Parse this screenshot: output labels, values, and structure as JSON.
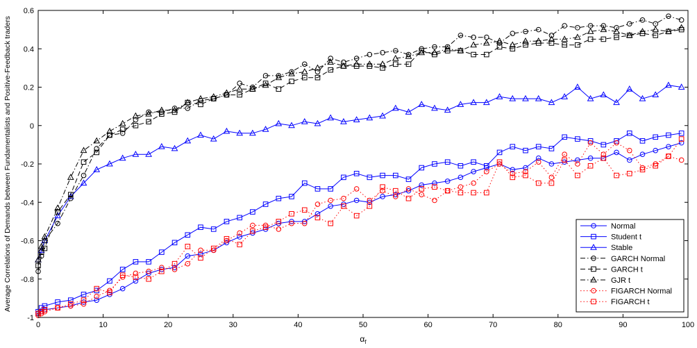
{
  "chart_data": {
    "type": "line",
    "title": "",
    "xlabel": "α",
    "xlabel_sub": "f",
    "ylabel": "Average Correlations of Demands between Fundamentalists and Positive-Feedback traders",
    "xlim": [
      0,
      100
    ],
    "ylim": [
      -1,
      0.6
    ],
    "xticks": [
      0,
      10,
      20,
      30,
      40,
      50,
      60,
      70,
      80,
      90,
      100
    ],
    "yticks": [
      -1,
      -0.8,
      -0.6,
      -0.4,
      -0.2,
      0,
      0.2,
      0.4,
      0.6
    ],
    "xtick_labels": [
      "0",
      "10",
      "20",
      "30",
      "40",
      "50",
      "60",
      "70",
      "80",
      "90",
      "100"
    ],
    "ytick_labels": [
      "-1",
      "-0.8",
      "-0.6",
      "-0.4",
      "-0.2",
      "0",
      "0.2",
      "0.4",
      "0.6"
    ],
    "grid": false,
    "legend_position": "bottom-right",
    "series": [
      {
        "name": "Normal",
        "color": "#0000ff",
        "dash": "solid",
        "marker": "circle",
        "x": [
          0,
          0.5,
          1,
          3,
          5,
          7,
          9,
          11,
          13,
          15,
          17,
          19,
          21,
          23,
          25,
          27,
          29,
          31,
          33,
          35,
          37,
          39,
          41,
          43,
          45,
          47,
          49,
          51,
          53,
          55,
          57,
          59,
          61,
          63,
          65,
          67,
          69,
          71,
          73,
          75,
          77,
          79,
          81,
          83,
          85,
          87,
          89,
          91,
          93,
          95,
          97,
          99
        ],
        "y": [
          -0.98,
          -0.97,
          -0.96,
          -0.95,
          -0.94,
          -0.92,
          -0.91,
          -0.88,
          -0.85,
          -0.81,
          -0.77,
          -0.75,
          -0.74,
          -0.68,
          -0.67,
          -0.65,
          -0.61,
          -0.58,
          -0.56,
          -0.54,
          -0.51,
          -0.5,
          -0.5,
          -0.46,
          -0.42,
          -0.41,
          -0.39,
          -0.4,
          -0.37,
          -0.36,
          -0.34,
          -0.31,
          -0.3,
          -0.29,
          -0.27,
          -0.24,
          -0.22,
          -0.2,
          -0.23,
          -0.22,
          -0.17,
          -0.2,
          -0.19,
          -0.18,
          -0.17,
          -0.17,
          -0.14,
          -0.18,
          -0.15,
          -0.13,
          -0.11,
          -0.09
        ]
      },
      {
        "name": "Student t",
        "color": "#0000ff",
        "dash": "solid",
        "marker": "square",
        "x": [
          0,
          0.5,
          1,
          3,
          5,
          7,
          9,
          11,
          13,
          15,
          17,
          19,
          21,
          23,
          25,
          27,
          29,
          31,
          33,
          35,
          37,
          39,
          41,
          43,
          45,
          47,
          49,
          51,
          53,
          55,
          57,
          59,
          61,
          63,
          65,
          67,
          69,
          71,
          73,
          75,
          77,
          79,
          81,
          83,
          85,
          87,
          89,
          91,
          93,
          95,
          97,
          99
        ],
        "y": [
          -0.97,
          -0.95,
          -0.94,
          -0.92,
          -0.91,
          -0.88,
          -0.86,
          -0.81,
          -0.75,
          -0.71,
          -0.71,
          -0.66,
          -0.61,
          -0.57,
          -0.53,
          -0.54,
          -0.5,
          -0.48,
          -0.45,
          -0.41,
          -0.38,
          -0.37,
          -0.3,
          -0.33,
          -0.33,
          -0.27,
          -0.25,
          -0.27,
          -0.26,
          -0.26,
          -0.28,
          -0.22,
          -0.2,
          -0.19,
          -0.21,
          -0.19,
          -0.21,
          -0.14,
          -0.11,
          -0.13,
          -0.11,
          -0.12,
          -0.06,
          -0.07,
          -0.08,
          -0.1,
          -0.08,
          -0.04,
          -0.08,
          -0.06,
          -0.05,
          -0.04
        ]
      },
      {
        "name": "Stable",
        "color": "#0000ff",
        "dash": "solid",
        "marker": "triangle",
        "x": [
          0,
          0.5,
          1,
          3,
          5,
          7,
          9,
          11,
          13,
          15,
          17,
          19,
          21,
          23,
          25,
          27,
          29,
          31,
          33,
          35,
          37,
          39,
          41,
          43,
          45,
          47,
          49,
          51,
          53,
          55,
          57,
          59,
          61,
          63,
          65,
          67,
          69,
          71,
          73,
          75,
          77,
          79,
          81,
          83,
          85,
          87,
          89,
          91,
          93,
          95,
          97,
          99
        ],
        "y": [
          -0.7,
          -0.65,
          -0.6,
          -0.47,
          -0.37,
          -0.3,
          -0.23,
          -0.2,
          -0.17,
          -0.15,
          -0.15,
          -0.11,
          -0.12,
          -0.08,
          -0.05,
          -0.07,
          -0.03,
          -0.04,
          -0.04,
          -0.02,
          0.01,
          0.0,
          0.02,
          0.01,
          0.04,
          0.02,
          0.03,
          0.04,
          0.05,
          0.09,
          0.07,
          0.11,
          0.09,
          0.08,
          0.11,
          0.12,
          0.12,
          0.15,
          0.14,
          0.14,
          0.14,
          0.12,
          0.15,
          0.2,
          0.14,
          0.16,
          0.12,
          0.19,
          0.14,
          0.16,
          0.21,
          0.2
        ]
      },
      {
        "name": "GARCH Normal",
        "color": "#000000",
        "dash": "dashdot",
        "marker": "circle",
        "x": [
          0,
          0.5,
          1,
          3,
          5,
          7,
          9,
          11,
          13,
          15,
          17,
          19,
          21,
          23,
          25,
          27,
          29,
          31,
          33,
          35,
          37,
          39,
          41,
          43,
          45,
          47,
          49,
          51,
          53,
          55,
          57,
          59,
          61,
          63,
          65,
          67,
          69,
          71,
          73,
          75,
          77,
          79,
          81,
          83,
          85,
          87,
          89,
          91,
          93,
          95,
          97,
          99
        ],
        "y": [
          -0.76,
          -0.68,
          -0.6,
          -0.51,
          -0.38,
          -0.26,
          -0.12,
          -0.05,
          -0.04,
          0.03,
          0.07,
          0.07,
          0.09,
          0.09,
          0.13,
          0.14,
          0.16,
          0.22,
          0.2,
          0.26,
          0.26,
          0.28,
          0.32,
          0.28,
          0.35,
          0.33,
          0.35,
          0.37,
          0.38,
          0.39,
          0.37,
          0.4,
          0.41,
          0.41,
          0.47,
          0.46,
          0.46,
          0.43,
          0.48,
          0.49,
          0.5,
          0.47,
          0.52,
          0.51,
          0.52,
          0.52,
          0.51,
          0.53,
          0.55,
          0.53,
          0.57,
          0.55
        ]
      },
      {
        "name": "GARCH t",
        "color": "#000000",
        "dash": "dash",
        "marker": "square",
        "x": [
          0,
          0.5,
          1,
          3,
          5,
          7,
          9,
          11,
          13,
          15,
          17,
          19,
          21,
          23,
          25,
          27,
          29,
          31,
          33,
          35,
          37,
          39,
          41,
          43,
          45,
          47,
          49,
          51,
          53,
          55,
          57,
          59,
          61,
          63,
          65,
          67,
          69,
          71,
          73,
          75,
          77,
          79,
          81,
          83,
          85,
          87,
          89,
          91,
          93,
          95,
          97,
          99
        ],
        "y": [
          -0.73,
          -0.66,
          -0.64,
          -0.45,
          -0.36,
          -0.19,
          -0.14,
          -0.05,
          -0.02,
          0.0,
          0.02,
          0.06,
          0.07,
          0.12,
          0.11,
          0.14,
          0.16,
          0.16,
          0.19,
          0.22,
          0.19,
          0.23,
          0.25,
          0.25,
          0.29,
          0.31,
          0.31,
          0.31,
          0.3,
          0.32,
          0.32,
          0.39,
          0.37,
          0.39,
          0.39,
          0.37,
          0.37,
          0.41,
          0.4,
          0.42,
          0.43,
          0.43,
          0.42,
          0.42,
          0.45,
          0.45,
          0.46,
          0.47,
          0.48,
          0.47,
          0.49,
          0.5
        ]
      },
      {
        "name": "GJR t",
        "color": "#000000",
        "dash": "dashdot",
        "marker": "triangle",
        "x": [
          0,
          0.5,
          1,
          3,
          5,
          7,
          9,
          11,
          13,
          15,
          17,
          19,
          21,
          23,
          25,
          27,
          29,
          31,
          33,
          35,
          37,
          39,
          41,
          43,
          45,
          47,
          49,
          51,
          53,
          55,
          57,
          59,
          61,
          63,
          65,
          67,
          69,
          71,
          73,
          75,
          77,
          79,
          81,
          83,
          85,
          87,
          89,
          91,
          93,
          95,
          97,
          99
        ],
        "y": [
          -0.7,
          -0.63,
          -0.58,
          -0.43,
          -0.27,
          -0.13,
          -0.08,
          -0.03,
          0.01,
          0.05,
          0.06,
          0.08,
          0.08,
          0.12,
          0.14,
          0.15,
          0.17,
          0.19,
          0.19,
          0.21,
          0.25,
          0.27,
          0.28,
          0.3,
          0.33,
          0.31,
          0.32,
          0.32,
          0.32,
          0.35,
          0.36,
          0.38,
          0.38,
          0.4,
          0.39,
          0.42,
          0.43,
          0.44,
          0.42,
          0.44,
          0.44,
          0.45,
          0.45,
          0.46,
          0.49,
          0.5,
          0.49,
          0.47,
          0.49,
          0.5,
          0.49,
          0.51
        ]
      },
      {
        "name": "FIGARCH Normal",
        "color": "#ff0000",
        "dash": "dot",
        "marker": "circle",
        "x": [
          0,
          0.5,
          1,
          3,
          5,
          7,
          9,
          11,
          13,
          15,
          17,
          19,
          21,
          23,
          25,
          27,
          29,
          31,
          33,
          35,
          37,
          39,
          41,
          43,
          45,
          47,
          49,
          51,
          53,
          55,
          57,
          59,
          61,
          63,
          65,
          67,
          69,
          71,
          73,
          75,
          77,
          79,
          81,
          83,
          85,
          87,
          89,
          91,
          93,
          95,
          97,
          99
        ],
        "y": [
          -0.99,
          -0.98,
          -0.97,
          -0.95,
          -0.94,
          -0.93,
          -0.89,
          -0.86,
          -0.79,
          -0.77,
          -0.76,
          -0.74,
          -0.75,
          -0.72,
          -0.65,
          -0.65,
          -0.6,
          -0.56,
          -0.52,
          -0.52,
          -0.54,
          -0.51,
          -0.51,
          -0.41,
          -0.39,
          -0.38,
          -0.33,
          -0.39,
          -0.34,
          -0.37,
          -0.33,
          -0.36,
          -0.39,
          -0.34,
          -0.32,
          -0.3,
          -0.24,
          -0.2,
          -0.25,
          -0.24,
          -0.19,
          -0.27,
          -0.15,
          -0.2,
          -0.09,
          -0.15,
          -0.09,
          -0.13,
          -0.22,
          -0.2,
          -0.16,
          -0.18
        ]
      },
      {
        "name": "FIGARCH t",
        "color": "#ff0000",
        "dash": "dot",
        "marker": "square",
        "x": [
          0,
          0.5,
          1,
          3,
          5,
          7,
          9,
          11,
          13,
          15,
          17,
          19,
          21,
          23,
          25,
          27,
          29,
          31,
          33,
          35,
          37,
          39,
          41,
          43,
          45,
          47,
          49,
          51,
          53,
          55,
          57,
          59,
          61,
          63,
          65,
          67,
          69,
          71,
          73,
          75,
          77,
          79,
          81,
          83,
          85,
          87,
          89,
          91,
          93,
          95,
          97,
          99
        ],
        "y": [
          -0.98,
          -0.97,
          -0.96,
          -0.95,
          -0.93,
          -0.91,
          -0.85,
          -0.87,
          -0.78,
          -0.79,
          -0.8,
          -0.76,
          -0.72,
          -0.63,
          -0.69,
          -0.64,
          -0.59,
          -0.62,
          -0.55,
          -0.53,
          -0.5,
          -0.46,
          -0.44,
          -0.48,
          -0.51,
          -0.42,
          -0.47,
          -0.42,
          -0.32,
          -0.34,
          -0.38,
          -0.33,
          -0.32,
          -0.34,
          -0.35,
          -0.35,
          -0.35,
          -0.19,
          -0.27,
          -0.26,
          -0.3,
          -0.3,
          -0.18,
          -0.26,
          -0.21,
          -0.17,
          -0.26,
          -0.25,
          -0.23,
          -0.21,
          -0.16,
          -0.07
        ]
      }
    ]
  }
}
